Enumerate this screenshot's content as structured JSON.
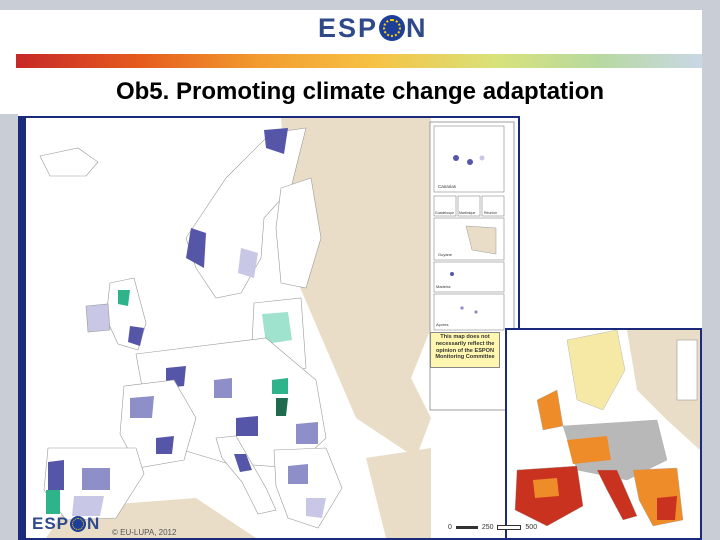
{
  "header": {
    "logo_text_left": "ESP",
    "logo_text_right": "N"
  },
  "slide": {
    "title": "Ob5. Promoting climate change adaptation"
  },
  "map": {
    "disclaimer": "This map does not necessarily reflect the opinion of the ESPON Monitoring Committee",
    "inset_labels": [
      "Canarias",
      "Guadeloupe",
      "Martinique",
      "Réunion",
      "Guyane",
      "Madeira",
      "Açores"
    ],
    "copyright": "© EU-LUPA, 2012",
    "scale_labels": [
      "0",
      "250",
      "500"
    ],
    "colors": {
      "ocean": "#ffffff",
      "nonESPON": "#e9ddc8",
      "cat_white": "#ffffff",
      "cat_light": "#c8c8e6",
      "cat_mid": "#8e8ec8",
      "cat_dark": "#5656a8",
      "cat_teal_light": "#9fe3cf",
      "cat_teal": "#2fb38a",
      "inset_red": "#c8321e",
      "inset_orange": "#ee8c2a",
      "inset_yellow": "#f6e9a6",
      "inset_grey": "#b8b8b8"
    }
  },
  "footer": {
    "logo_text_left": "ESP",
    "logo_text_right": "N"
  }
}
